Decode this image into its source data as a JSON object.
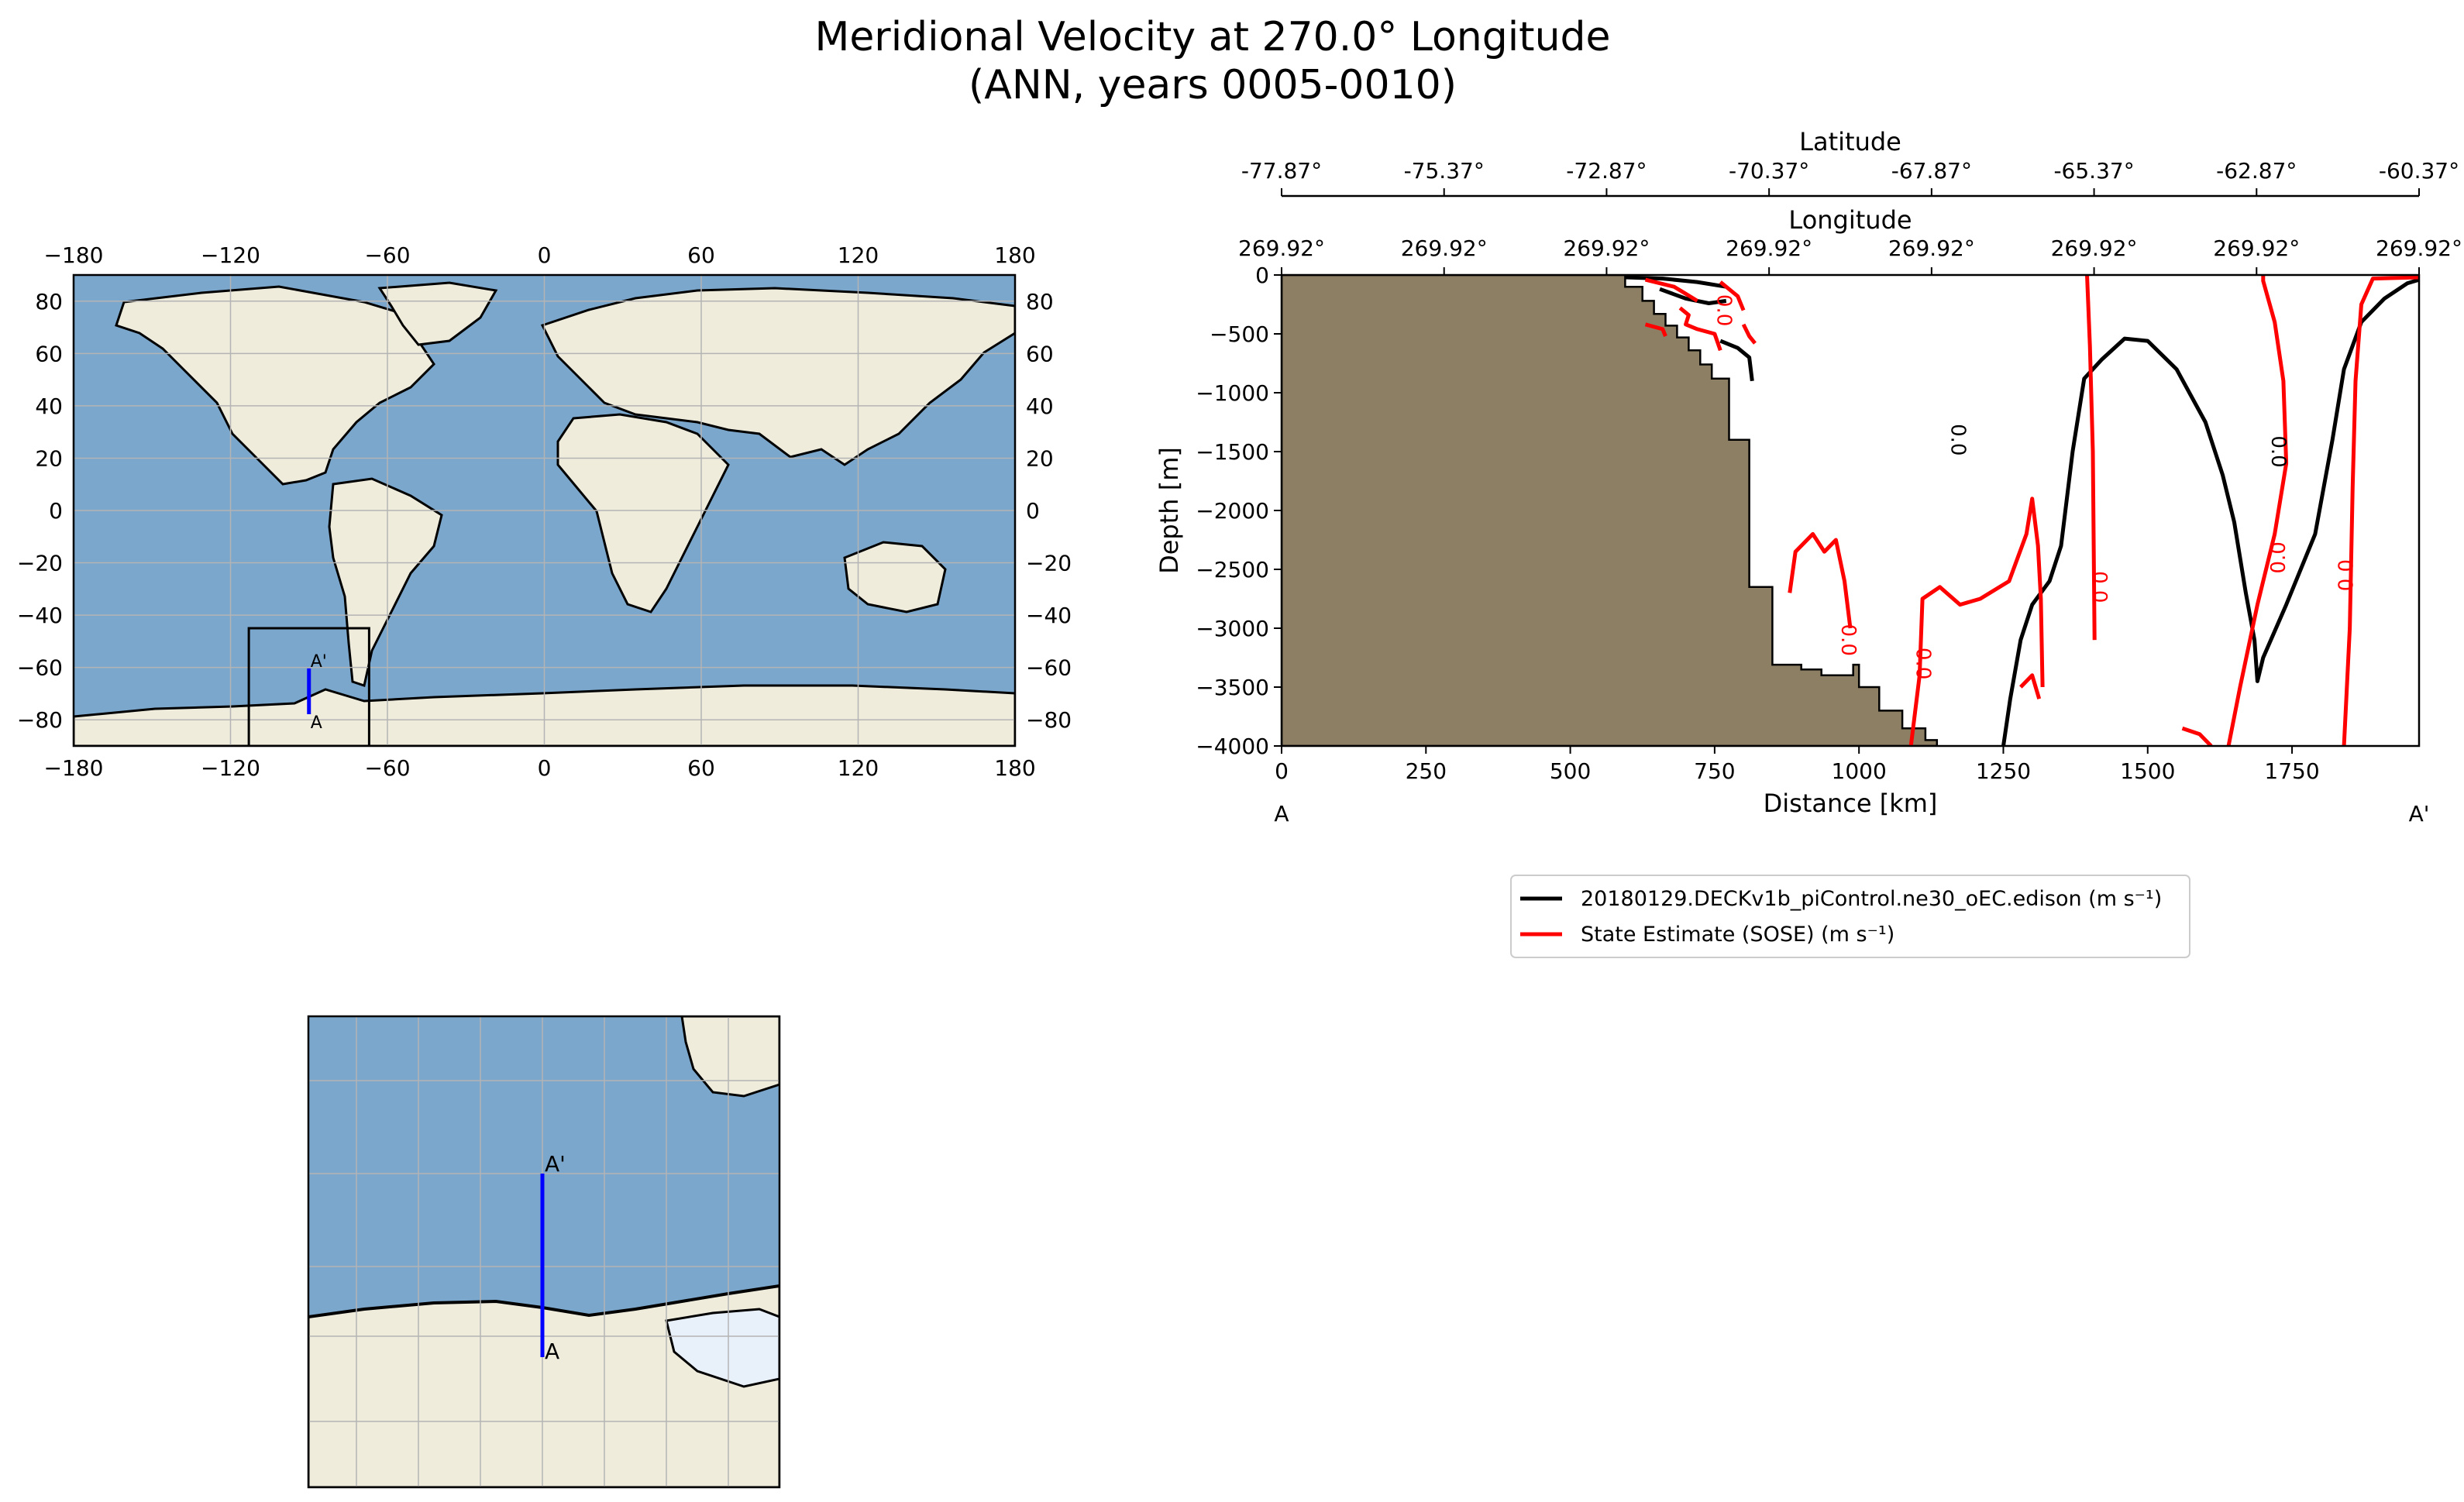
{
  "title_line1": "Meridional Velocity at 270.0° Longitude",
  "title_line2": "(ANN, years 0005-0010)",
  "colors": {
    "ocean": "#7ba7cc",
    "land": "#efecdc",
    "ice": "#e8f0fa",
    "seafloor": "#8c7f64",
    "grid": "#b4b4b4",
    "transect": "#0000ff",
    "model_line": "#000000",
    "obs_line": "#ff0000"
  },
  "map_global": {
    "lon_ticks": [
      "−180",
      "−120",
      "−60",
      "0",
      "60",
      "120",
      "180"
    ],
    "lat_ticks": [
      "80",
      "60",
      "40",
      "20",
      "0",
      "−20",
      "−40",
      "−60",
      "−80"
    ],
    "inset_box": {
      "lon": [
        -113,
        -67
      ],
      "lat": [
        -90,
        -45
      ]
    },
    "transect": {
      "lon": 270.0,
      "lat_start": -77.87,
      "lat_end": -60.37
    },
    "start_label": "A",
    "end_label": "A'"
  },
  "map_inset": {
    "start_label": "A",
    "end_label": "A'"
  },
  "chart_data": {
    "type": "line",
    "subtype": "contour-section",
    "xlabel": "Distance [km]",
    "ylabel": "Depth [m]",
    "xlim": [
      0,
      1970
    ],
    "ylim": [
      -4000,
      0
    ],
    "x_ticks": [
      0,
      250,
      500,
      750,
      1000,
      1250,
      1500,
      1750
    ],
    "y_ticks": [
      0,
      -500,
      -1000,
      -1500,
      -2000,
      -2500,
      -3000,
      -3500,
      -4000
    ],
    "x_tick_labels": [
      "0",
      "250",
      "500",
      "750",
      "1000",
      "1250",
      "1500",
      "1750"
    ],
    "y_tick_labels": [
      "0",
      "−500",
      "−1000",
      "−1500",
      "−2000",
      "−2500",
      "−3000",
      "−3500",
      "−4000"
    ],
    "top_axis_1": {
      "label": "Latitude",
      "ticks": [
        "-77.87°",
        "-75.37°",
        "-72.87°",
        "-70.37°",
        "-67.87°",
        "-65.37°",
        "-62.87°",
        "-60.37°"
      ]
    },
    "top_axis_2": {
      "label": "Longitude",
      "ticks": [
        "269.92°",
        "269.92°",
        "269.92°",
        "269.92°",
        "269.92°",
        "269.92°",
        "269.92°",
        "269.92°"
      ]
    },
    "section_start": "A",
    "section_end": "A'",
    "bathymetry": [
      [
        0,
        0
      ],
      [
        595,
        0
      ],
      [
        595,
        -100
      ],
      [
        625,
        -100
      ],
      [
        625,
        -220
      ],
      [
        645,
        -220
      ],
      [
        645,
        -330
      ],
      [
        665,
        -330
      ],
      [
        665,
        -430
      ],
      [
        685,
        -430
      ],
      [
        685,
        -530
      ],
      [
        705,
        -530
      ],
      [
        705,
        -640
      ],
      [
        725,
        -640
      ],
      [
        725,
        -760
      ],
      [
        745,
        -760
      ],
      [
        745,
        -880
      ],
      [
        775,
        -880
      ],
      [
        775,
        -1400
      ],
      [
        810,
        -1400
      ],
      [
        810,
        -2650
      ],
      [
        850,
        -2650
      ],
      [
        850,
        -3310
      ],
      [
        900,
        -3310
      ],
      [
        900,
        -3350
      ],
      [
        935,
        -3350
      ],
      [
        935,
        -3400
      ],
      [
        990,
        -3400
      ],
      [
        990,
        -3310
      ],
      [
        1000,
        -3310
      ],
      [
        1000,
        -3500
      ],
      [
        1035,
        -3500
      ],
      [
        1035,
        -3700
      ],
      [
        1075,
        -3700
      ],
      [
        1075,
        -3850
      ],
      [
        1115,
        -3850
      ],
      [
        1115,
        -3950
      ],
      [
        1135,
        -3950
      ],
      [
        1135,
        -4000
      ],
      [
        0,
        -4000
      ]
    ],
    "series": [
      {
        "name": "20180129.DECKv1b_piControl.ne30_oEC.edison (m s⁻¹)",
        "color": "#000000",
        "contour_level": 0.0,
        "segments": [
          [
            [
              595,
              -20
            ],
            [
              660,
              -30
            ],
            [
              720,
              -60
            ],
            [
              770,
              -100
            ]
          ],
          [
            [
              655,
              -120
            ],
            [
              700,
              -200
            ],
            [
              740,
              -240
            ],
            [
              770,
              -220
            ]
          ],
          [
            [
              760,
              -560
            ],
            [
              790,
              -620
            ],
            [
              810,
              -700
            ],
            [
              815,
              -900
            ]
          ],
          [
            [
              1250,
              -4000
            ],
            [
              1262,
              -3600
            ],
            [
              1280,
              -3100
            ],
            [
              1300,
              -2800
            ],
            [
              1330,
              -2600
            ],
            [
              1350,
              -2300
            ],
            [
              1370,
              -1500
            ],
            [
              1390,
              -880
            ],
            [
              1420,
              -720
            ],
            [
              1460,
              -540
            ],
            [
              1500,
              -560
            ],
            [
              1550,
              -800
            ],
            [
              1600,
              -1250
            ],
            [
              1630,
              -1700
            ],
            [
              1650,
              -2100
            ],
            [
              1670,
              -2700
            ],
            [
              1685,
              -3100
            ],
            [
              1690,
              -3450
            ],
            [
              1700,
              -3250
            ],
            [
              1740,
              -2800
            ],
            [
              1790,
              -2200
            ],
            [
              1820,
              -1400
            ],
            [
              1840,
              -800
            ],
            [
              1870,
              -400
            ],
            [
              1910,
              -200
            ],
            [
              1950,
              -70
            ],
            [
              1970,
              -40
            ]
          ]
        ]
      },
      {
        "name": "State Estimate (SOSE) (m s⁻¹)",
        "color": "#ff0000",
        "contour_level": 0.0,
        "segments": [
          [
            [
              630,
              -40
            ],
            [
              680,
              -100
            ],
            [
              700,
              -160
            ],
            [
              720,
              -220
            ]
          ],
          [
            [
              760,
              -60
            ],
            [
              790,
              -180
            ],
            [
              800,
              -300
            ]
          ],
          [
            [
              690,
              -280
            ],
            [
              705,
              -340
            ],
            [
              700,
              -420
            ],
            [
              720,
              -460
            ],
            [
              750,
              -500
            ],
            [
              760,
              -640
            ]
          ],
          [
            [
              800,
              -420
            ],
            [
              810,
              -520
            ],
            [
              820,
              -580
            ]
          ],
          [
            [
              630,
              -420
            ],
            [
              660,
              -460
            ],
            [
              665,
              -520
            ]
          ],
          [
            [
              880,
              -2700
            ],
            [
              890,
              -2350
            ],
            [
              920,
              -2200
            ],
            [
              940,
              -2350
            ],
            [
              960,
              -2250
            ],
            [
              975,
              -2600
            ],
            [
              985,
              -3000
            ]
          ],
          [
            [
              1090,
              -4000
            ],
            [
              1105,
              -3400
            ],
            [
              1110,
              -2750
            ],
            [
              1140,
              -2650
            ],
            [
              1175,
              -2800
            ],
            [
              1210,
              -2750
            ],
            [
              1260,
              -2600
            ],
            [
              1290,
              -2200
            ],
            [
              1300,
              -1900
            ],
            [
              1310,
              -2300
            ],
            [
              1315,
              -2750
            ],
            [
              1318,
              -3500
            ]
          ],
          [
            [
              1280,
              -3500
            ],
            [
              1300,
              -3400
            ],
            [
              1312,
              -3600
            ]
          ],
          [
            [
              1395,
              0
            ],
            [
              1400,
              -600
            ],
            [
              1405,
              -1500
            ],
            [
              1408,
              -3100
            ]
          ],
          [
            [
              1560,
              -3850
            ],
            [
              1590,
              -3900
            ],
            [
              1610,
              -4000
            ]
          ],
          [
            [
              1640,
              -4000
            ],
            [
              1660,
              -3500
            ],
            [
              1690,
              -2800
            ],
            [
              1720,
              -2200
            ],
            [
              1740,
              -1600
            ],
            [
              1735,
              -900
            ],
            [
              1720,
              -400
            ],
            [
              1700,
              -50
            ],
            [
              1700,
              0
            ]
          ],
          [
            [
              1840,
              -4000
            ],
            [
              1850,
              -3000
            ],
            [
              1855,
              -1800
            ],
            [
              1860,
              -900
            ],
            [
              1870,
              -250
            ],
            [
              1890,
              -30
            ],
            [
              1970,
              -20
            ]
          ]
        ]
      }
    ],
    "contour_labels": [
      {
        "text": "0.0",
        "x": 1160,
        "y": -1400,
        "rotate": 90,
        "color": "#000000"
      },
      {
        "text": "0.0",
        "x": 1715,
        "y": -1500,
        "rotate": 90,
        "color": "#000000"
      },
      {
        "text": "0.0",
        "x": 970,
        "y": -3100,
        "rotate": 90,
        "color": "#ff0000"
      },
      {
        "text": "0.0",
        "x": 1100,
        "y": -3300,
        "rotate": 90,
        "color": "#ff0000"
      },
      {
        "text": "0.0",
        "x": 1405,
        "y": -2650,
        "rotate": 90,
        "color": "#ff0000"
      },
      {
        "text": "0.0",
        "x": 1738,
        "y": -2400,
        "rotate": -90,
        "color": "#ff0000"
      },
      {
        "text": "0.0",
        "x": 1855,
        "y": -2550,
        "rotate": -90,
        "color": "#ff0000"
      },
      {
        "text": "0.0",
        "x": 755,
        "y": -300,
        "rotate": 90,
        "color": "#ff0000"
      }
    ]
  }
}
